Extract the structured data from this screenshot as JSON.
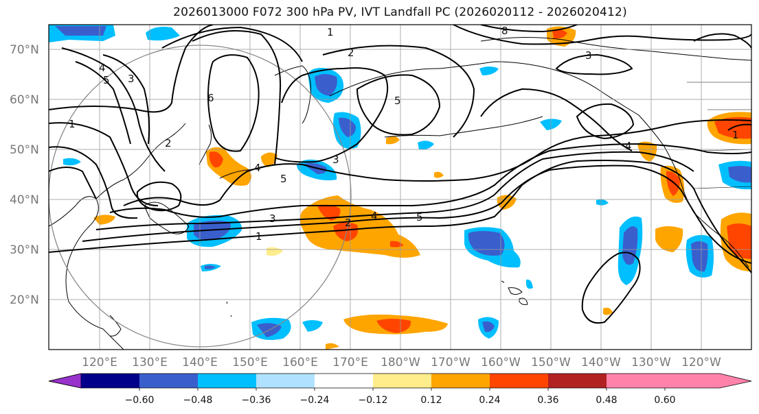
{
  "title": "2026013000 F072 300 hPa PV, IVT Landfall PC (2026020112 - 2026020412)",
  "lat_labels": [
    "70°N",
    "60°N",
    "50°N",
    "40°N",
    "30°N",
    "20°N"
  ],
  "lon_labels": [
    "120°E",
    "130°E",
    "140°E",
    "150°E",
    "160°E",
    "170°E",
    "180°W",
    "170°W",
    "160°W",
    "150°W",
    "140°W",
    "130°W",
    "120°W"
  ],
  "colorbar": {
    "ticks": [
      "−0.60",
      "−0.48",
      "−0.36",
      "−0.24",
      "−0.12",
      "0.12",
      "0.24",
      "0.36",
      "0.48",
      "0.60"
    ],
    "colors": [
      "#9932cc",
      "#00008b",
      "#3a5fcd",
      "#00bfff",
      "#b0e2ff",
      "#ffffff",
      "#ffec8b",
      "#ffa500",
      "#ff4500",
      "#b22222",
      "#ff82ab"
    ]
  },
  "contour_labels": [
    "1",
    "2",
    "3",
    "4",
    "5",
    "6",
    "8",
    "1",
    "2",
    "3",
    "4",
    "5",
    "3",
    "4",
    "5",
    "1",
    "2",
    "3",
    "4",
    "5",
    "1"
  ],
  "colors": {
    "pos_high": "#ff4500",
    "pos_mid": "#ffa500",
    "pos_low": "#ffec8b",
    "neg_high": "#3a5fcd",
    "neg_mid": "#00bfff",
    "neg_low": "#b0e2ff"
  }
}
